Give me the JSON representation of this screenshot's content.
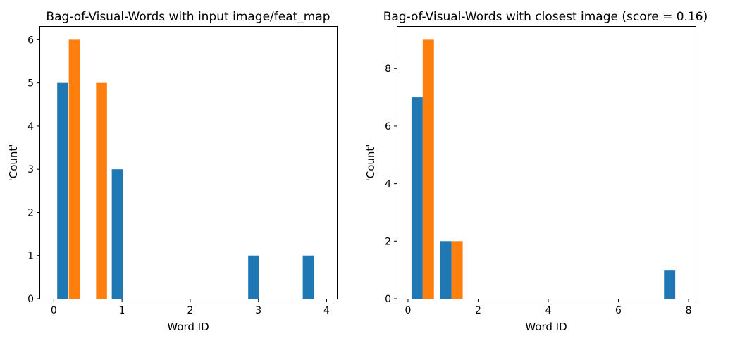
{
  "chart_data": [
    {
      "type": "bar",
      "title": "Bag-of-Visual-Words with input image/feat_map",
      "xlabel": "Word ID",
      "ylabel": "'Count'",
      "xlim": [
        -0.2,
        4.15
      ],
      "ylim": [
        0,
        6.3
      ],
      "xticks": [
        0,
        1,
        2,
        3,
        4
      ],
      "yticks": [
        0,
        1,
        2,
        3,
        4,
        5,
        6
      ],
      "bar_width": 0.16,
      "series": [
        {
          "color": "#1f77b4",
          "bins": [
            [
              0.05,
              5
            ],
            [
              0.85,
              3
            ],
            [
              2.85,
              1
            ],
            [
              3.65,
              1
            ]
          ]
        },
        {
          "color": "#ff7f0e",
          "bins": [
            [
              0.22,
              6
            ],
            [
              0.62,
              5
            ]
          ]
        }
      ],
      "grid": false
    },
    {
      "type": "bar",
      "title": "Bag-of-Visual-Words with closest image (score = 0.16)",
      "xlabel": "Word ID",
      "ylabel": "'Count'",
      "xlim": [
        -0.3,
        8.2
      ],
      "ylim": [
        0,
        9.45
      ],
      "xticks": [
        0,
        2,
        4,
        6,
        8
      ],
      "yticks": [
        0,
        2,
        4,
        6,
        8
      ],
      "bar_width": 0.32,
      "series": [
        {
          "color": "#1f77b4",
          "bins": [
            [
              0.1,
              7
            ],
            [
              0.92,
              2
            ],
            [
              7.3,
              1
            ]
          ]
        },
        {
          "color": "#ff7f0e",
          "bins": [
            [
              0.42,
              9
            ],
            [
              1.24,
              2
            ]
          ]
        }
      ],
      "grid": false
    }
  ]
}
